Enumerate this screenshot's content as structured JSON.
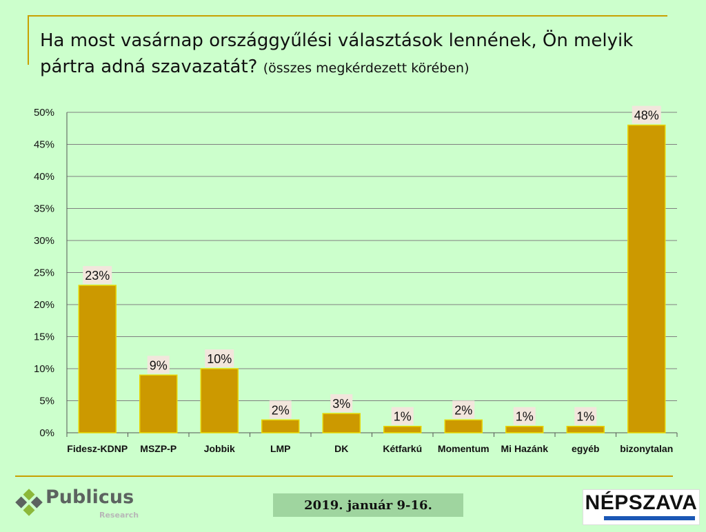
{
  "title": {
    "main": "Ha most vasárnap országgyűlési választások lennének, Ön melyik pártra adná szavazatát?",
    "sub": "(összes megkérdezett körében)"
  },
  "chart_data": {
    "type": "bar",
    "categories": [
      "Fidesz-KDNP",
      "MSZP-P",
      "Jobbik",
      "LMP",
      "DK",
      "Kétfarkú",
      "Momentum",
      "Mi Hazánk",
      "egyéb",
      "bizonytalan"
    ],
    "values": [
      23,
      9,
      10,
      2,
      3,
      1,
      2,
      1,
      1,
      48
    ],
    "data_labels": [
      "23%",
      "9%",
      "10%",
      "2%",
      "3%",
      "1%",
      "2%",
      "1%",
      "1%",
      "48%"
    ],
    "ylim": [
      0,
      50
    ],
    "yticks": [
      0,
      5,
      10,
      15,
      20,
      25,
      30,
      35,
      40,
      45,
      50
    ],
    "ytick_labels": [
      "0%",
      "5%",
      "10%",
      "15%",
      "20%",
      "25%",
      "30%",
      "35%",
      "40%",
      "45%",
      "50%"
    ],
    "grid": true,
    "legend": "none",
    "colors": {
      "bar": "#cc9900",
      "bar_edge": "#e6d600",
      "label_bg": "#f2e6dc",
      "grid": "#7f7f7f"
    }
  },
  "footer": {
    "date": "2019. január 9-16.",
    "logo_left": {
      "name": "Publicus",
      "tagline": "Research"
    },
    "logo_right": {
      "name": "NÉPSZAVA"
    }
  }
}
